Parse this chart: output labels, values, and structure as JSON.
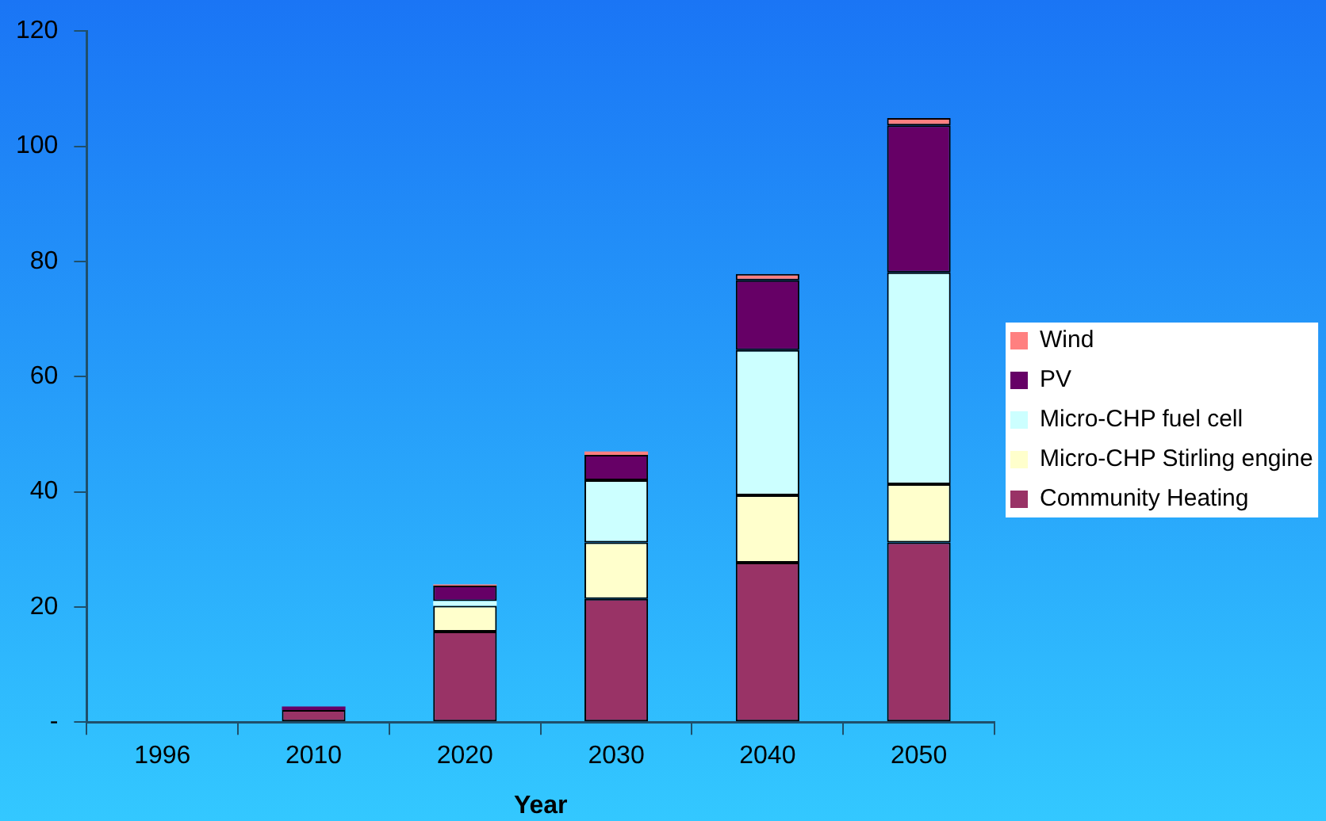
{
  "chart_data": {
    "type": "bar",
    "xlabel": "Year",
    "categories": [
      "1996",
      "2010",
      "2020",
      "2030",
      "2040",
      "2050"
    ],
    "stacked": true,
    "legend": "right",
    "grid": false,
    "ylim": [
      0,
      120
    ],
    "yticks": [
      {
        "value": 0,
        "label": "-"
      },
      20,
      40,
      60,
      80,
      100,
      120
    ],
    "series": [
      {
        "name": "Community Heating",
        "color": "#993366",
        "values": [
          0,
          2.1,
          15.7,
          21.4,
          27.7,
          31.2
        ]
      },
      {
        "name": "Micro-CHP Stirling engine",
        "color": "#ffffcc",
        "values": [
          0,
          0,
          4.5,
          9.8,
          11.7,
          10.1
        ]
      },
      {
        "name": "Micro-CHP fuel cell",
        "color": "#ccffff",
        "values": [
          0,
          0,
          0.8,
          10.8,
          25.2,
          36.8
        ]
      },
      {
        "name": "PV",
        "color": "#660066",
        "values": [
          0,
          0.6,
          2.7,
          4.4,
          12.1,
          25.5
        ]
      },
      {
        "name": "Wind",
        "color": "#ff8080",
        "values": [
          0,
          0,
          0.2,
          0.6,
          1.1,
          1.3
        ]
      }
    ]
  }
}
